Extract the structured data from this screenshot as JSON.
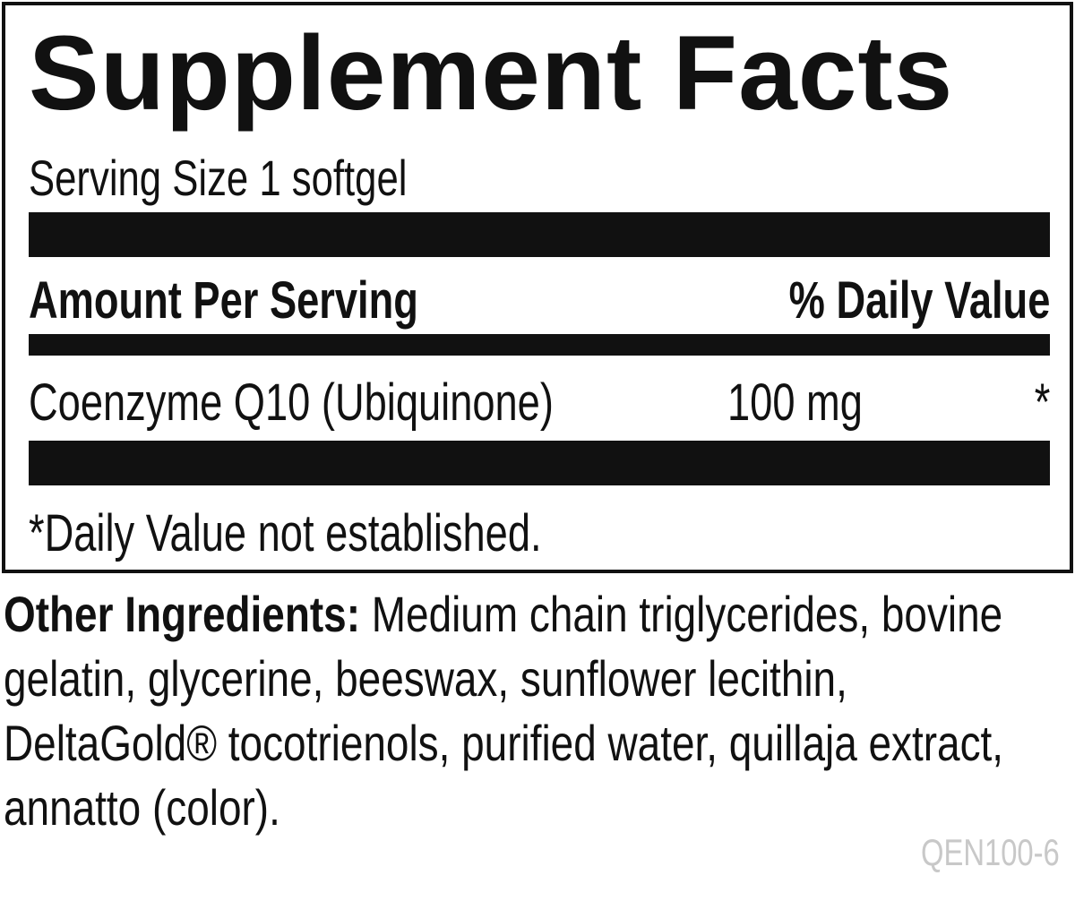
{
  "title": "Supplement Facts",
  "serving_size": "Serving Size 1 softgel",
  "header": {
    "amount": "Amount Per Serving",
    "daily_value": "% Daily Value"
  },
  "rows": [
    {
      "name": "Coenzyme Q10 (Ubiquinone)",
      "amount": "100 mg",
      "daily_value": "*"
    }
  ],
  "footnote": "*Daily Value not established.",
  "other_ingredients": {
    "label": "Other Ingredients:",
    "text": "Medium chain triglycerides, bovine gelatin, glycerine, beeswax, sunflower lecithin, DeltaGold® tocotrienols, purified water, quillaja extract, annatto (color)."
  },
  "code": "QEN100-6"
}
